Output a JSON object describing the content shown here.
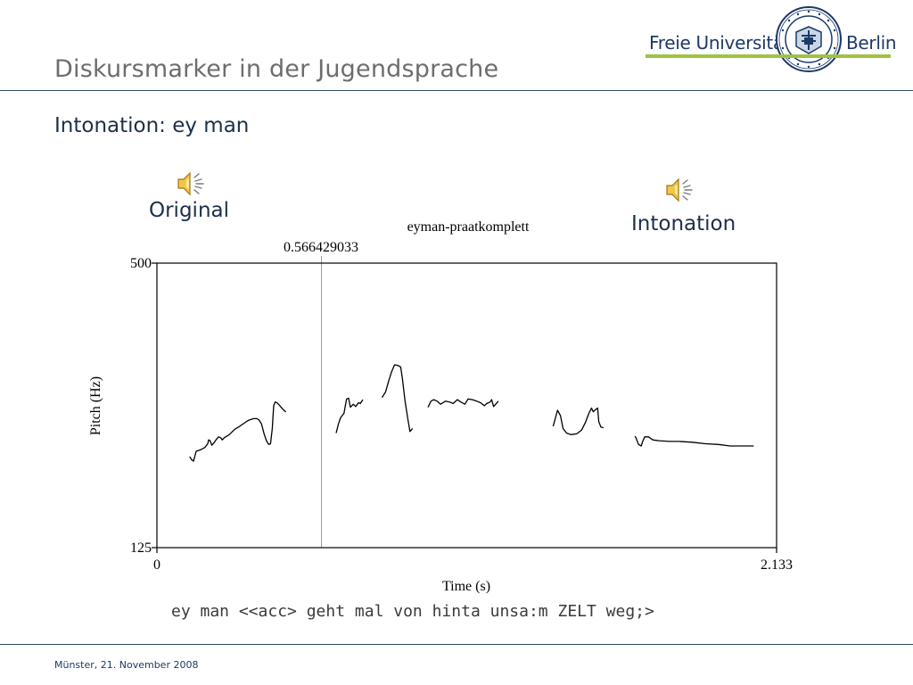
{
  "slide": {
    "title": "Diskursmarker in der Jugendsprache",
    "subtitle": "Intonation: ey man",
    "footer_date": "Münster, 21. November 2008",
    "transcript": "ey man <<acc> geht mal von hinta unsa:m ZELT weg;>"
  },
  "logo": {
    "text_left": "Freie Universität",
    "text_right": "Berlin",
    "seal_text": "VERITAS IVSTITIA LIBERTAS",
    "seal_bottom": "FREIE UNIVERSITÄT BERLIN",
    "colors": {
      "blue": "#1d3a66",
      "green": "#9fc33f"
    }
  },
  "audio": {
    "original": {
      "label": "Original",
      "icon": "speaker-icon"
    },
    "intonation": {
      "label": "Intonation",
      "icon": "speaker-icon"
    }
  },
  "chart_data": {
    "type": "line",
    "title": "eyman-praatkomplett",
    "xlabel": "Time (s)",
    "ylabel": "Pitch (Hz)",
    "xlim": [
      0,
      2.133
    ],
    "ylim": [
      125,
      500
    ],
    "x_tick_labels": [
      "0",
      "2.133"
    ],
    "y_tick_labels": [
      "125",
      "500"
    ],
    "cursor": {
      "x": 0.566429033,
      "label": "0.566429033"
    },
    "grid": false,
    "legend": "none",
    "line_color": "#000000",
    "series": [
      {
        "points": [
          [
            0.113,
            245
          ],
          [
            0.119,
            241
          ],
          [
            0.126,
            239
          ],
          [
            0.135,
            252
          ],
          [
            0.15,
            254
          ],
          [
            0.165,
            257
          ],
          [
            0.175,
            262
          ],
          [
            0.178,
            267
          ],
          [
            0.183,
            266
          ],
          [
            0.189,
            260
          ],
          [
            0.198,
            264
          ],
          [
            0.205,
            268
          ],
          [
            0.212,
            271
          ],
          [
            0.219,
            270
          ],
          [
            0.225,
            267
          ],
          [
            0.232,
            270
          ],
          [
            0.249,
            274
          ],
          [
            0.268,
            281
          ],
          [
            0.285,
            285
          ],
          [
            0.3,
            289
          ],
          [
            0.316,
            293
          ],
          [
            0.332,
            295
          ],
          [
            0.345,
            295
          ],
          [
            0.352,
            293
          ],
          [
            0.36,
            288
          ],
          [
            0.369,
            275
          ],
          [
            0.377,
            266
          ],
          [
            0.385,
            261
          ],
          [
            0.391,
            262
          ],
          [
            0.397,
            282
          ],
          [
            0.4,
            300
          ],
          [
            0.402,
            312
          ],
          [
            0.407,
            317
          ],
          [
            0.413,
            316
          ],
          [
            0.421,
            313
          ],
          [
            0.432,
            308
          ],
          [
            0.44,
            305
          ],
          [
            0.444,
            304
          ]
        ]
      },
      {
        "points": [
          [
            0.617,
            276
          ],
          [
            0.625,
            288
          ],
          [
            0.632,
            296
          ],
          [
            0.644,
            302
          ],
          [
            0.65,
            315
          ],
          [
            0.653,
            321
          ],
          [
            0.66,
            322
          ],
          [
            0.666,
            310
          ],
          [
            0.676,
            314
          ],
          [
            0.684,
            311
          ],
          [
            0.694,
            316
          ],
          [
            0.7,
            315
          ],
          [
            0.709,
            320
          ]
        ]
      },
      {
        "points": [
          [
            0.775,
            323
          ],
          [
            0.787,
            330
          ],
          [
            0.798,
            345
          ],
          [
            0.808,
            357
          ],
          [
            0.818,
            366
          ],
          [
            0.83,
            365
          ],
          [
            0.839,
            363
          ],
          [
            0.845,
            348
          ],
          [
            0.854,
            318
          ],
          [
            0.864,
            294
          ],
          [
            0.871,
            278
          ],
          [
            0.88,
            282
          ]
        ]
      },
      {
        "points": [
          [
            0.933,
            310
          ],
          [
            0.943,
            318
          ],
          [
            0.953,
            320
          ],
          [
            0.965,
            318
          ],
          [
            0.976,
            314
          ],
          [
            0.993,
            318
          ],
          [
            1.007,
            317
          ],
          [
            1.02,
            315
          ],
          [
            1.034,
            320
          ],
          [
            1.046,
            317
          ],
          [
            1.06,
            314
          ],
          [
            1.071,
            321
          ],
          [
            1.086,
            320
          ],
          [
            1.101,
            318
          ],
          [
            1.114,
            316
          ],
          [
            1.127,
            312
          ],
          [
            1.136,
            315
          ],
          [
            1.147,
            317
          ],
          [
            1.152,
            320
          ],
          [
            1.159,
            311
          ],
          [
            1.168,
            315
          ],
          [
            1.175,
            318
          ]
        ]
      },
      {
        "points": [
          [
            1.364,
            285
          ],
          [
            1.379,
            306
          ],
          [
            1.389,
            299
          ],
          [
            1.398,
            282
          ],
          [
            1.41,
            276
          ],
          [
            1.425,
            274
          ],
          [
            1.445,
            275
          ],
          [
            1.462,
            280
          ],
          [
            1.475,
            290
          ],
          [
            1.487,
            302
          ],
          [
            1.496,
            309
          ],
          [
            1.502,
            304
          ],
          [
            1.51,
            307
          ],
          [
            1.517,
            309
          ],
          [
            1.521,
            291
          ],
          [
            1.528,
            284
          ],
          [
            1.537,
            283
          ]
        ]
      },
      {
        "points": [
          [
            1.646,
            272
          ],
          [
            1.651,
            268
          ],
          [
            1.658,
            261
          ],
          [
            1.667,
            259
          ],
          [
            1.672,
            265
          ],
          [
            1.679,
            271
          ],
          [
            1.692,
            271
          ],
          [
            1.707,
            267
          ],
          [
            1.728,
            266
          ],
          [
            1.764,
            265
          ],
          [
            1.798,
            265
          ],
          [
            1.842,
            264
          ],
          [
            1.888,
            262
          ],
          [
            1.933,
            261
          ],
          [
            1.973,
            259
          ],
          [
            2.007,
            259
          ],
          [
            2.047,
            259
          ],
          [
            2.054,
            259
          ]
        ]
      }
    ]
  }
}
